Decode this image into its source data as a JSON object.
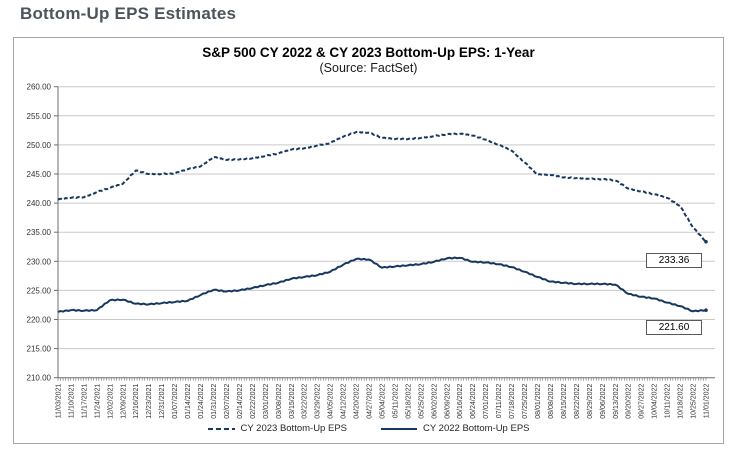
{
  "page": {
    "heading": "Bottom-Up EPS Estimates"
  },
  "chart": {
    "title": "S&P 500 CY 2022 & CY 2023 Bottom-Up EPS: 1-Year",
    "subtitle": "(Source: FactSet)",
    "end_labels": {
      "cy2023": "233.36",
      "cy2022": "221.60"
    },
    "legend": [
      {
        "name": "CY 2023 Bottom-Up EPS",
        "style": "dashed"
      },
      {
        "name": "CY 2022 Bottom-Up EPS",
        "style": "solid"
      }
    ]
  },
  "colors": {
    "line": "#17375E",
    "grid": "#C9C9C9",
    "axis": "#6E6E6E",
    "heading_text": "#4C545E",
    "label_box_border": "#595959"
  },
  "chart_data": {
    "type": "line",
    "title": "S&P 500 CY 2022 & CY 2023 Bottom-Up EPS: 1-Year",
    "subtitle": "(Source: FactSet)",
    "ylim": [
      210,
      260
    ],
    "ytick_step": 5,
    "yticks": [
      "260.00",
      "255.00",
      "250.00",
      "245.00",
      "240.00",
      "235.00",
      "230.00",
      "225.00",
      "220.00",
      "215.00",
      "210.00"
    ],
    "grid": "horizontal",
    "legend_position": "bottom",
    "x": [
      "11/03/2021",
      "11/10/2021",
      "11/17/2021",
      "11/24/2021",
      "12/02/2021",
      "12/09/2021",
      "12/16/2021",
      "12/23/2021",
      "12/31/2021",
      "01/07/2022",
      "01/14/2022",
      "01/24/2022",
      "01/31/2022",
      "02/07/2022",
      "02/14/2022",
      "02/22/2022",
      "03/01/2022",
      "03/08/2022",
      "03/15/2022",
      "03/22/2022",
      "03/29/2022",
      "04/05/2022",
      "04/12/2022",
      "04/20/2022",
      "04/27/2022",
      "05/04/2022",
      "05/11/2022",
      "05/18/2022",
      "05/25/2022",
      "06/02/2022",
      "06/09/2022",
      "06/16/2022",
      "06/24/2022",
      "07/01/2022",
      "07/11/2022",
      "07/18/2022",
      "07/25/2022",
      "08/01/2022",
      "08/08/2022",
      "08/15/2022",
      "08/22/2022",
      "08/29/2022",
      "09/06/2022",
      "09/13/2022",
      "09/20/2022",
      "09/27/2022",
      "10/04/2022",
      "10/11/2022",
      "10/18/2022",
      "10/25/2022",
      "11/01/2022"
    ],
    "series": [
      {
        "name": "CY 2023 Bottom-Up EPS",
        "style": "dashed",
        "color": "#17375E",
        "end_label": "233.36",
        "values": [
          240.6,
          240.9,
          241.0,
          241.9,
          242.6,
          243.3,
          245.6,
          245.0,
          245.0,
          245.1,
          245.8,
          246.3,
          247.9,
          247.4,
          247.5,
          247.7,
          248.1,
          248.5,
          249.2,
          249.4,
          249.9,
          250.3,
          251.4,
          252.2,
          252.1,
          251.2,
          251.0,
          251.0,
          251.2,
          251.5,
          251.8,
          251.9,
          251.6,
          250.9,
          250.0,
          249.0,
          247.0,
          244.9,
          244.8,
          244.4,
          244.3,
          244.2,
          244.1,
          243.9,
          242.5,
          242.0,
          241.5,
          240.9,
          239.5,
          235.8,
          233.36
        ]
      },
      {
        "name": "CY 2022 Bottom-Up EPS",
        "style": "solid",
        "color": "#17375E",
        "end_label": "221.60",
        "values": [
          221.3,
          221.6,
          221.5,
          221.6,
          223.3,
          223.4,
          222.7,
          222.6,
          222.8,
          223.0,
          223.2,
          224.2,
          225.1,
          224.8,
          225.0,
          225.4,
          225.9,
          226.3,
          227.0,
          227.3,
          227.6,
          228.2,
          229.4,
          230.4,
          230.3,
          228.9,
          229.1,
          229.3,
          229.5,
          229.9,
          230.5,
          230.6,
          229.9,
          229.8,
          229.5,
          229.0,
          228.2,
          227.3,
          226.5,
          226.3,
          226.1,
          226.1,
          226.1,
          226.0,
          224.4,
          223.9,
          223.6,
          222.9,
          222.3,
          221.4,
          221.6
        ]
      }
    ]
  }
}
